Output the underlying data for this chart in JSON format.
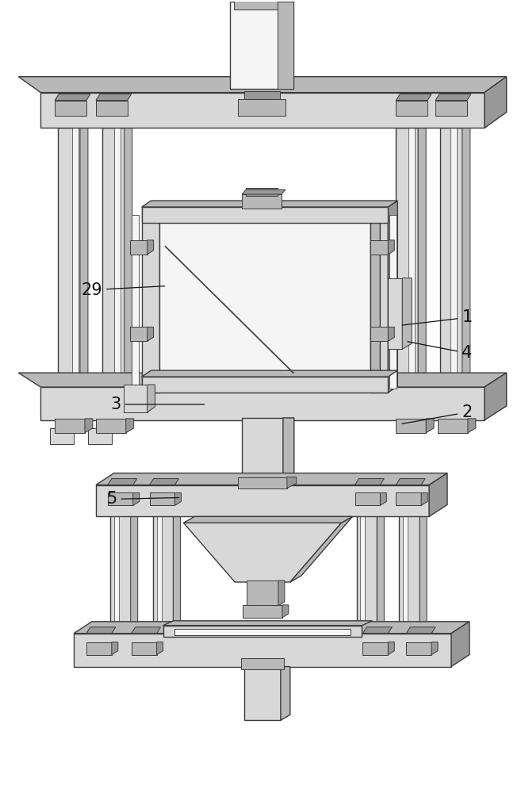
{
  "bg_color": "#ffffff",
  "lc": "#3a3a3a",
  "fl": "#d8d8d8",
  "fm": "#b8b8b8",
  "fd": "#989898",
  "fw": "#f5f5f5",
  "figsize": [
    6.62,
    10.0
  ],
  "dpi": 100
}
